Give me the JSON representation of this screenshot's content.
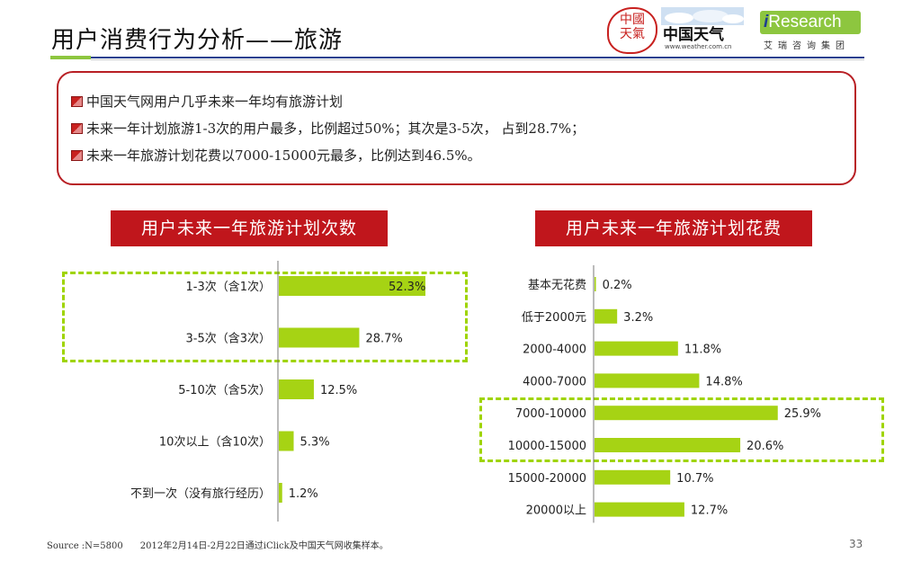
{
  "header": {
    "title": "用户消费行为分析——旅游"
  },
  "logos": {
    "weather_seal": "中國天氣",
    "weather_name": "中国天气",
    "weather_url": "www.weather.com.cn",
    "iresearch_i": "i",
    "iresearch_word": "Research",
    "iresearch_cn": "艾瑞咨询集团"
  },
  "summary": {
    "bullets": [
      "中国天气网用户几乎未来一年均有旅游计划",
      "未来一年计划旅游1-3次的用户最多，比例超过50%；其次是3-5次， 占到28.7%；",
      "未来一年旅游计划花费以7000-15000元最多，比例达到46.5%。"
    ]
  },
  "colors": {
    "accent_red": "#c0161c",
    "bar_green": "#a6d314",
    "dash_green": "#9fd400",
    "rule_blue": "#1f3f8f"
  },
  "chart_data": [
    {
      "type": "bar",
      "orientation": "horizontal",
      "title": "用户未来一年旅游计划次数",
      "categories": [
        "1-3次（含1次）",
        "3-5次（含3次）",
        "5-10次（含5次）",
        "10次以上（含10次）",
        "不到一次（没有旅行经历）"
      ],
      "values": [
        52.3,
        28.7,
        12.5,
        5.3,
        1.2
      ],
      "value_labels": [
        "52.3%",
        "28.7%",
        "12.5%",
        "5.3%",
        "1.2%"
      ],
      "xlim": [
        0,
        60
      ],
      "grid": false,
      "highlight": [
        "1-3次（含1次）",
        "3-5次（含3次）"
      ]
    },
    {
      "type": "bar",
      "orientation": "horizontal",
      "title": "用户未来一年旅游计划花费",
      "categories": [
        "基本无花费",
        "低于2000元",
        "2000-4000",
        "4000-7000",
        "7000-10000",
        "10000-15000",
        "15000-20000",
        "20000以上"
      ],
      "values": [
        0.2,
        3.2,
        11.8,
        14.8,
        25.9,
        20.6,
        10.7,
        12.7
      ],
      "value_labels": [
        "0.2%",
        "3.2%",
        "11.8%",
        "14.8%",
        "25.9%",
        "20.6%",
        "10.7%",
        "12.7%"
      ],
      "xlim": [
        0,
        30
      ],
      "grid": false,
      "highlight": [
        "7000-10000",
        "10000-15000"
      ]
    }
  ],
  "footer": {
    "source": "Source :N=5800      2012年2月14日-2月22日通过iClick及中国天气网收集样本。",
    "page_number": "33"
  }
}
